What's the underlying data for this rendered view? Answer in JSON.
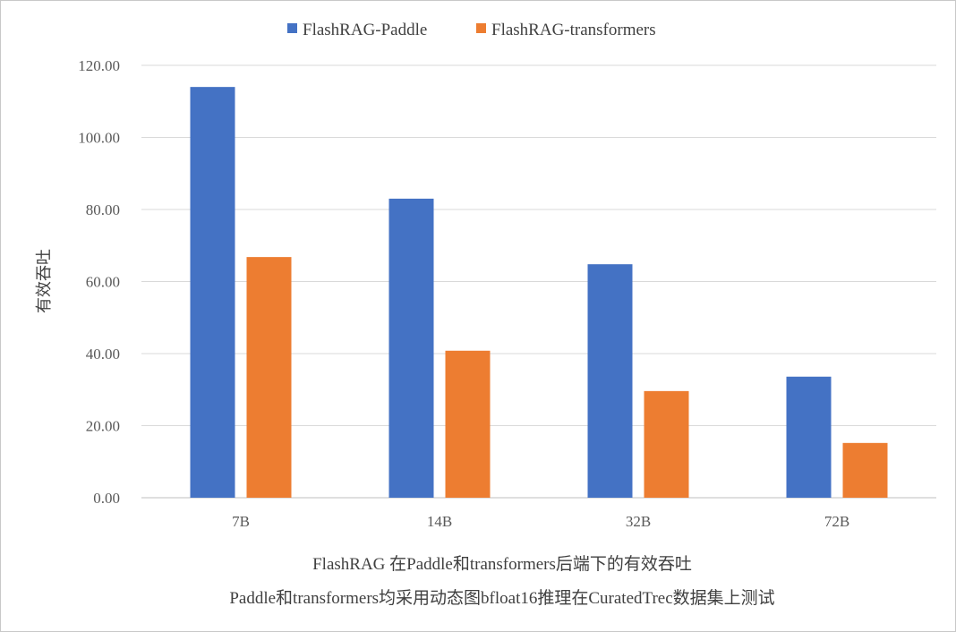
{
  "chart_data": {
    "type": "bar",
    "categories": [
      "7B",
      "14B",
      "32B",
      "72B"
    ],
    "series": [
      {
        "name": "FlashRAG-Paddle",
        "values": [
          114.0,
          83.0,
          64.8,
          33.6
        ],
        "color": "#4472C4"
      },
      {
        "name": "FlashRAG-transformers",
        "values": [
          66.8,
          40.8,
          29.6,
          15.2
        ],
        "color": "#ED7D31"
      }
    ],
    "ylabel": "有效吞吐",
    "xlabel": "",
    "ylim": [
      0,
      120
    ],
    "yticks": [
      "0.00",
      "20.00",
      "40.00",
      "60.00",
      "80.00",
      "100.00",
      "120.00"
    ],
    "grid": true,
    "legend_position": "top",
    "caption_lines": [
      "FlashRAG 在Paddle和transformers后端下的有效吞吐",
      "Paddle和transformers均采用动态图bfloat16推理在CuratedTrec数据集上测试"
    ]
  }
}
